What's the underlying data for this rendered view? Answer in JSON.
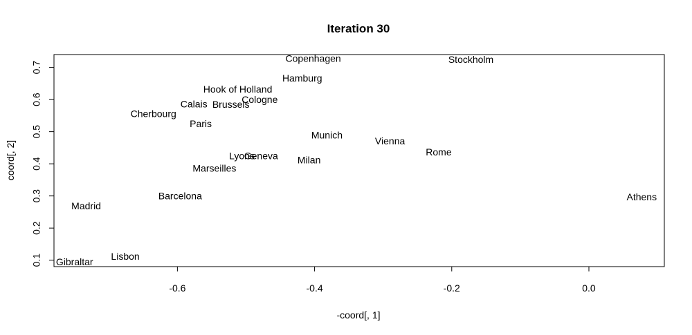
{
  "chart_data": {
    "type": "scatter",
    "title": "Iteration 30",
    "xlabel": "-coord[, 1]",
    "ylabel": "coord[, 2]",
    "xlim": [
      -0.78,
      0.11
    ],
    "ylim": [
      0.08,
      0.74
    ],
    "x_ticks": [
      -0.6,
      -0.4,
      -0.2,
      0.0
    ],
    "x_tick_labels": [
      "-0.6",
      "-0.4",
      "-0.2",
      "0.0"
    ],
    "y_ticks": [
      0.1,
      0.2,
      0.3,
      0.4,
      0.5,
      0.6,
      0.7
    ],
    "y_tick_labels": [
      "0.1",
      "0.2",
      "0.3",
      "0.4",
      "0.5",
      "0.6",
      "0.7"
    ],
    "grid": false,
    "points": [
      {
        "label": "Copenhagen",
        "x": -0.402,
        "y": 0.725
      },
      {
        "label": "Stockholm",
        "x": -0.172,
        "y": 0.722
      },
      {
        "label": "Hamburg",
        "x": -0.418,
        "y": 0.664
      },
      {
        "label": "Hook of Holland",
        "x": -0.512,
        "y": 0.63
      },
      {
        "label": "Cologne",
        "x": -0.48,
        "y": 0.598
      },
      {
        "label": "Calais",
        "x": -0.576,
        "y": 0.584
      },
      {
        "label": "Brussels",
        "x": -0.522,
        "y": 0.582
      },
      {
        "label": "Cherbourg",
        "x": -0.635,
        "y": 0.553
      },
      {
        "label": "Paris",
        "x": -0.566,
        "y": 0.522
      },
      {
        "label": "Munich",
        "x": -0.382,
        "y": 0.487
      },
      {
        "label": "Vienna",
        "x": -0.29,
        "y": 0.468
      },
      {
        "label": "Rome",
        "x": -0.219,
        "y": 0.434
      },
      {
        "label": "Lyons",
        "x": -0.506,
        "y": 0.422
      },
      {
        "label": "Geneva",
        "x": -0.478,
        "y": 0.422
      },
      {
        "label": "Milan",
        "x": -0.408,
        "y": 0.409
      },
      {
        "label": "Marseilles",
        "x": -0.546,
        "y": 0.384
      },
      {
        "label": "Athens",
        "x": 0.077,
        "y": 0.294
      },
      {
        "label": "Barcelona",
        "x": -0.596,
        "y": 0.298
      },
      {
        "label": "Madrid",
        "x": -0.733,
        "y": 0.266
      },
      {
        "label": "Lisbon",
        "x": -0.676,
        "y": 0.109
      },
      {
        "label": "Gibraltar",
        "x": -0.75,
        "y": 0.092
      }
    ]
  }
}
